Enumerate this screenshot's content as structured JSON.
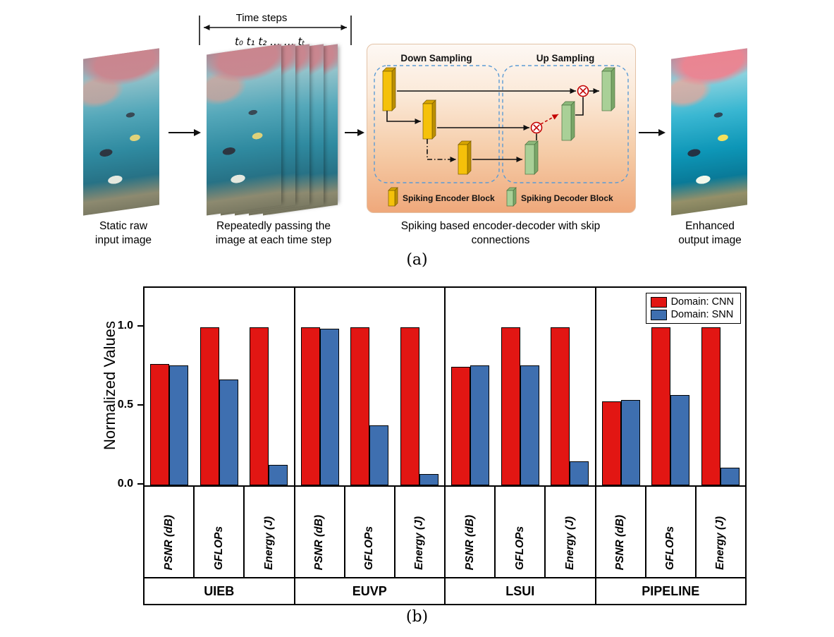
{
  "panel_a": {
    "time_steps_label": "Time steps",
    "time_ticks": "t₀ t₁ t₂  … … tₜ",
    "captions": {
      "input": "Static raw\ninput image",
      "stack": "Repeatedly passing the\nimage at each time step",
      "encdec": "Spiking based encoder-decoder with skip\nconnections",
      "output": "Enhanced\noutput image"
    },
    "encdec": {
      "down_sampling_label": "Down Sampling",
      "up_sampling_label": "Up Sampling",
      "encoder_legend_label": "Spiking Encoder Block",
      "decoder_legend_label": "Spiking Decoder Block",
      "encoder_color": "#f5c10a",
      "decoder_color": "#a9d097"
    },
    "sublabel": "(a)"
  },
  "panel_b": {
    "sublabel": "(b)"
  },
  "chart_data": {
    "type": "bar",
    "title": "",
    "ylabel": "Normalized Values",
    "xlabel": "",
    "ylim": [
      0,
      1.25
    ],
    "yticks": [
      0.0,
      0.5,
      1.0
    ],
    "grid": false,
    "legend_position": "top-right",
    "groups": [
      "UIEB",
      "EUVP",
      "LSUI",
      "PIPELINE"
    ],
    "metrics": [
      "PSNR (dB)",
      "GFLOPs",
      "Energy (J)"
    ],
    "series": [
      {
        "name": "Domain: CNN",
        "color": "#e21613",
        "values": [
          [
            0.77,
            1.0,
            1.0
          ],
          [
            1.0,
            1.0,
            1.0
          ],
          [
            0.75,
            1.0,
            1.0
          ],
          [
            0.53,
            1.0,
            1.0
          ]
        ]
      },
      {
        "name": "Domain: SNN",
        "color": "#3e6fb0",
        "values": [
          [
            0.76,
            0.67,
            0.13
          ],
          [
            0.99,
            0.38,
            0.07
          ],
          [
            0.76,
            0.76,
            0.15
          ],
          [
            0.54,
            0.57,
            0.11
          ]
        ]
      }
    ]
  }
}
